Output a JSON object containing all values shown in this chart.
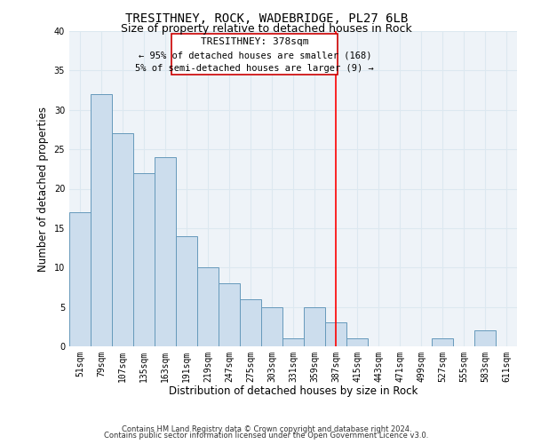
{
  "title": "TRESITHNEY, ROCK, WADEBRIDGE, PL27 6LB",
  "subtitle": "Size of property relative to detached houses in Rock",
  "xlabel": "Distribution of detached houses by size in Rock",
  "ylabel": "Number of detached properties",
  "bin_labels": [
    "51sqm",
    "79sqm",
    "107sqm",
    "135sqm",
    "163sqm",
    "191sqm",
    "219sqm",
    "247sqm",
    "275sqm",
    "303sqm",
    "331sqm",
    "359sqm",
    "387sqm",
    "415sqm",
    "443sqm",
    "471sqm",
    "499sqm",
    "527sqm",
    "555sqm",
    "583sqm",
    "611sqm"
  ],
  "bar_heights": [
    17,
    32,
    27,
    22,
    24,
    14,
    10,
    8,
    6,
    5,
    1,
    5,
    3,
    1,
    0,
    0,
    0,
    1,
    0,
    2,
    0
  ],
  "bar_color": "#ccdded",
  "bar_edge_color": "#6699bb",
  "property_line_bin": 12,
  "property_line_label": "TRESITHNEY: 378sqm",
  "annotation_line1": "← 95% of detached houses are smaller (168)",
  "annotation_line2": "5% of semi-detached houses are larger (9) →",
  "ylim": [
    0,
    40
  ],
  "yticks": [
    0,
    5,
    10,
    15,
    20,
    25,
    30,
    35,
    40
  ],
  "grid_color": "#dce8f0",
  "footer_line1": "Contains HM Land Registry data © Crown copyright and database right 2024.",
  "footer_line2": "Contains public sector information licensed under the Open Government Licence v3.0.",
  "title_fontsize": 10,
  "subtitle_fontsize": 9,
  "axis_label_fontsize": 8.5,
  "tick_fontsize": 7,
  "annotation_fontsize": 8,
  "footer_fontsize": 6
}
